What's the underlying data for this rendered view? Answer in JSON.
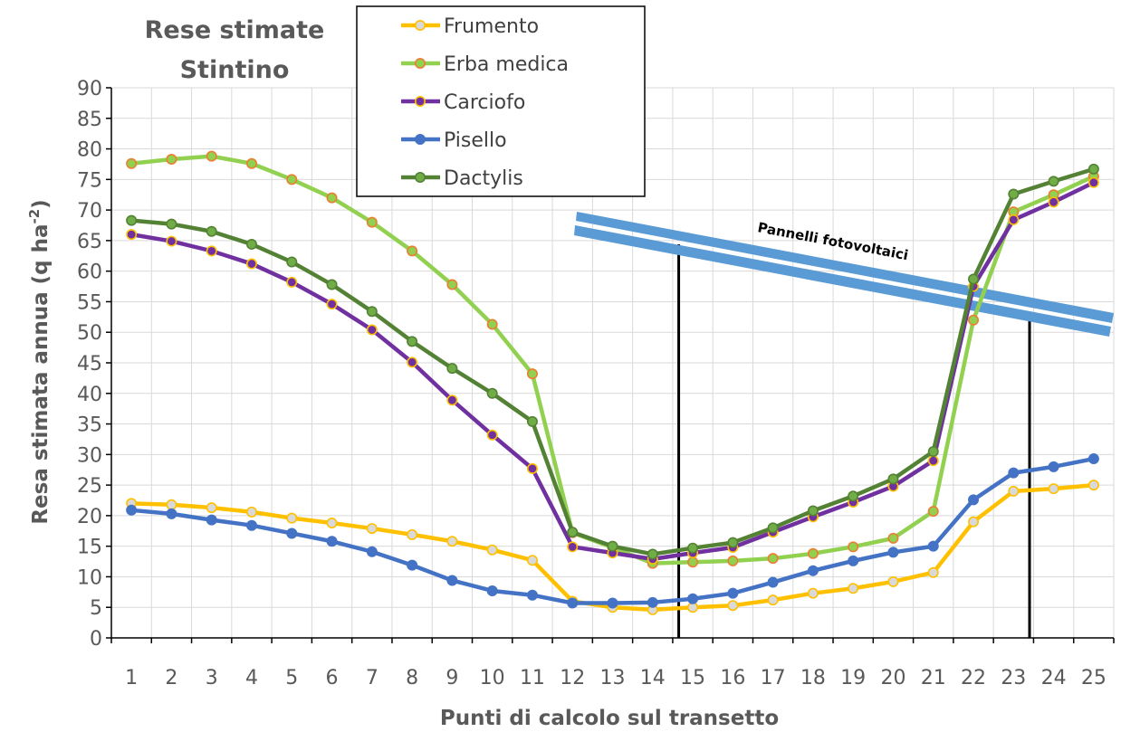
{
  "chart_data": {
    "type": "line",
    "title_lines": [
      "Rese stimate",
      "Stintino"
    ],
    "xlabel": "Punti di calcolo sul transetto",
    "ylabel_main": "Resa stimata annua (q ha",
    "ylabel_sup": "-2",
    "ylabel_end": ")",
    "x": [
      1,
      2,
      3,
      4,
      5,
      6,
      7,
      8,
      9,
      10,
      11,
      12,
      13,
      14,
      15,
      16,
      17,
      18,
      19,
      20,
      21,
      22,
      23,
      24,
      25
    ],
    "ylim": [
      0,
      90
    ],
    "yticks": [
      0,
      5,
      10,
      15,
      20,
      25,
      30,
      35,
      40,
      45,
      50,
      55,
      60,
      65,
      70,
      75,
      80,
      85,
      90
    ],
    "grid": true,
    "legend_position": "top-center",
    "series": [
      {
        "name": "Frumento",
        "line_color": "#FFC000",
        "marker_fill": "#D9D9D9",
        "marker_edge": "#FFC000",
        "values": [
          22,
          21.8,
          21.3,
          20.6,
          19.6,
          18.8,
          17.9,
          16.9,
          15.8,
          14.4,
          12.7,
          6,
          5,
          4.6,
          5,
          5.3,
          6.2,
          7.3,
          8.1,
          9.2,
          10.7,
          19,
          24,
          24.4,
          25
        ]
      },
      {
        "name": "Erba medica",
        "line_color": "#92D050",
        "marker_fill": "#92D050",
        "marker_edge": "#ED7D31",
        "values": [
          77.6,
          78.3,
          78.8,
          77.6,
          75,
          72,
          68,
          63.3,
          57.8,
          51.3,
          43.2,
          17.2,
          14.8,
          12.2,
          12.4,
          12.6,
          13,
          13.8,
          14.9,
          16.3,
          20.7,
          52,
          69.7,
          72.5,
          75.5
        ]
      },
      {
        "name": "Carciofo",
        "line_color": "#7030A0",
        "marker_fill": "#7030A0",
        "marker_edge": "#FFC000",
        "values": [
          66,
          64.9,
          63.3,
          61.2,
          58.2,
          54.6,
          50.4,
          45.1,
          38.9,
          33.2,
          27.7,
          14.9,
          13.9,
          12.9,
          13.9,
          14.8,
          17.3,
          19.8,
          22.2,
          24.8,
          29,
          57.5,
          68.4,
          71.3,
          74.5
        ]
      },
      {
        "name": "Pisello",
        "line_color": "#4472C4",
        "marker_fill": "#4472C4",
        "marker_edge": "#4472C4",
        "values": [
          20.9,
          20.3,
          19.3,
          18.4,
          17.1,
          15.8,
          14.1,
          11.9,
          9.4,
          7.7,
          7,
          5.7,
          5.7,
          5.8,
          6.4,
          7.3,
          9.1,
          11,
          12.6,
          14,
          15,
          22.6,
          27,
          28,
          29.3
        ]
      },
      {
        "name": "Dactylis",
        "line_color": "#548235",
        "marker_fill": "#70AD47",
        "marker_edge": "#548235",
        "values": [
          68.3,
          67.7,
          66.5,
          64.4,
          61.5,
          57.8,
          53.4,
          48.5,
          44.1,
          40,
          35.4,
          17.3,
          15,
          13.7,
          14.7,
          15.6,
          18,
          20.8,
          23.2,
          26,
          30.5,
          58.7,
          72.6,
          74.7,
          76.7
        ]
      }
    ],
    "annotation": {
      "text": "Pannelli fotovoltaici",
      "band_color": "#5B9BD5",
      "support_positions_x": [
        14.65,
        23.4
      ]
    }
  }
}
